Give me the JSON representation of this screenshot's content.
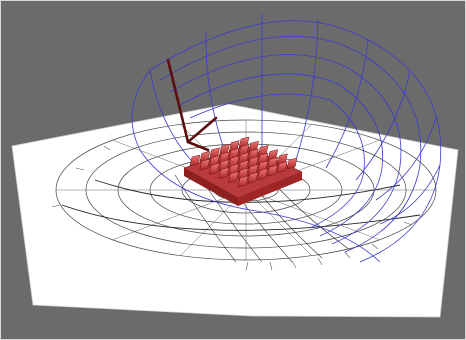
{
  "viewport": {
    "background_color": "#6b6b6b",
    "ground_plane_color": "#ffffff",
    "sun_path_color": "#3b3bd0",
    "polar_grid_color": "#444444",
    "sun_vector_color": "#5a0e0e",
    "panel_array_color": "#d84a4a"
  },
  "scene_icons": [
    "sun-path-dome-icon",
    "sun-vector-arrow-icon",
    "shading-panel-array-icon",
    "polar-sun-chart-icon"
  ]
}
